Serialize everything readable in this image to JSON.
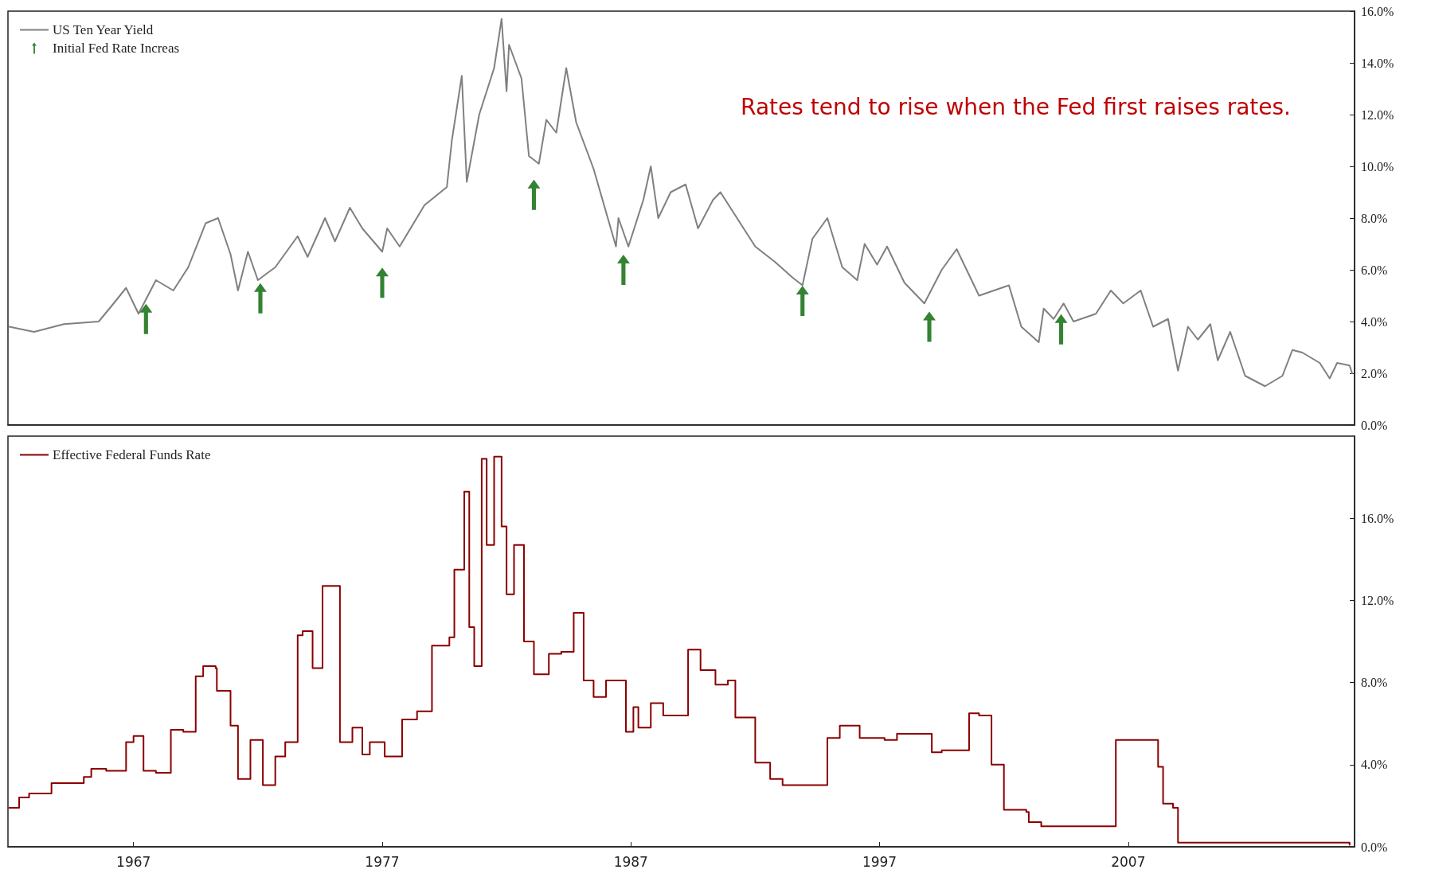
{
  "chart_data": [
    {
      "type": "line",
      "annotations": [
        "Rates tend to rise when the Fed first raises rates."
      ],
      "xlim": [
        1961.95,
        2016.1
      ],
      "ylim": [
        0,
        16
      ],
      "yticks": [
        {
          "value": 0,
          "label": "0.0%"
        },
        {
          "value": 2,
          "label": "2.0%"
        },
        {
          "value": 4,
          "label": "4.0%"
        },
        {
          "value": 6,
          "label": "6.0%"
        },
        {
          "value": 8,
          "label": "8.0%"
        },
        {
          "value": 10,
          "label": "10.0%"
        },
        {
          "value": 12,
          "label": "12.0%"
        },
        {
          "value": 14,
          "label": "14.0%"
        },
        {
          "value": 16,
          "label": "16.0%"
        }
      ],
      "tick_labels": "y",
      "grid": false,
      "legend": "top left",
      "marker": "none",
      "series": [
        {
          "name": "US Ten Year Yield",
          "color": "#808080",
          "x": [
            1962.0,
            1963.0,
            1964.2,
            1965.6,
            1966.2,
            1966.7,
            1967.2,
            1967.9,
            1968.6,
            1969.2,
            1969.9,
            1970.4,
            1970.9,
            1971.2,
            1971.6,
            1972.0,
            1972.7,
            1973.6,
            1974.0,
            1974.7,
            1975.1,
            1975.7,
            1976.2,
            1977.0,
            1977.2,
            1977.7,
            1978.7,
            1979.6,
            1979.8,
            1980.2,
            1980.4,
            1980.9,
            1981.5,
            1981.8,
            1982.0,
            1982.1,
            1982.6,
            1982.9,
            1983.3,
            1983.6,
            1984.0,
            1984.4,
            1984.8,
            1985.5,
            1986.4,
            1986.5,
            1986.9,
            1987.5,
            1987.8,
            1988.1,
            1988.6,
            1989.2,
            1989.7,
            1990.3,
            1990.6,
            1992.0,
            1992.8,
            1993.5,
            1993.9,
            1994.3,
            1994.9,
            1995.5,
            1996.1,
            1996.4,
            1996.9,
            1997.3,
            1998.0,
            1998.8,
            1999.5,
            2000.1,
            2001.0,
            2002.2,
            2002.7,
            2003.4,
            2003.6,
            2004.0,
            2004.4,
            2004.8,
            2005.7,
            2006.3,
            2006.8,
            2007.5,
            2008.0,
            2008.6,
            2009.0,
            2009.4,
            2009.8,
            2010.3,
            2010.6,
            2011.1,
            2011.7,
            2012.5,
            2013.2,
            2013.6,
            2014.0,
            2014.7,
            2015.1,
            2015.4,
            2015.9,
            2016.0
          ],
          "values": [
            3.8,
            3.6,
            3.9,
            4.0,
            4.7,
            5.3,
            4.3,
            5.6,
            5.2,
            6.1,
            7.8,
            8.0,
            6.6,
            5.2,
            6.7,
            5.6,
            6.1,
            7.3,
            6.5,
            8.0,
            7.1,
            8.4,
            7.6,
            6.7,
            7.6,
            6.9,
            8.5,
            9.2,
            11.0,
            13.5,
            9.4,
            12.0,
            13.8,
            15.7,
            12.9,
            14.7,
            13.4,
            10.4,
            10.1,
            11.8,
            11.3,
            13.8,
            11.7,
            9.9,
            6.9,
            8.0,
            6.9,
            8.7,
            10.0,
            8.0,
            9.0,
            9.3,
            7.6,
            8.7,
            9.0,
            6.9,
            6.3,
            5.7,
            5.4,
            7.2,
            8.0,
            6.1,
            5.6,
            7.0,
            6.2,
            6.9,
            5.5,
            4.7,
            6.0,
            6.8,
            5.0,
            5.4,
            3.8,
            3.2,
            4.5,
            4.1,
            4.7,
            4.0,
            4.3,
            5.2,
            4.7,
            5.2,
            3.8,
            4.1,
            2.1,
            3.8,
            3.3,
            3.9,
            2.5,
            3.6,
            1.9,
            1.5,
            1.9,
            2.9,
            2.8,
            2.4,
            1.8,
            2.4,
            2.3,
            2.0
          ]
        },
        {
          "name": "Initial Fed Rate Increas",
          "type": "scatter",
          "color": "#006400",
          "x": [
            1967.5,
            1972.1,
            1977.0,
            1983.1,
            1986.7,
            1993.9,
            1999.0,
            2004.3
          ],
          "values": [
            4.1,
            4.9,
            5.5,
            8.9,
            6.0,
            4.8,
            3.8,
            3.7
          ]
        }
      ]
    },
    {
      "type": "step",
      "xlim": [
        1961.95,
        2016.1
      ],
      "xticks": [
        1967,
        1977,
        1987,
        1997,
        2007
      ],
      "ylim": [
        0,
        20
      ],
      "yticks": [
        {
          "value": 0,
          "label": "0.0%"
        },
        {
          "value": 4,
          "label": "4.0%"
        },
        {
          "value": 8,
          "label": "8.0%"
        },
        {
          "value": 12,
          "label": "12.0%"
        },
        {
          "value": 16,
          "label": "16.0%"
        }
      ],
      "grid": false,
      "legend": "top left",
      "marker": "none",
      "series": [
        {
          "name": "Effective Federal Funds Rate",
          "color": "#8b0000",
          "x": [
            1962.0,
            1962.4,
            1962.8,
            1963.7,
            1965.0,
            1965.3,
            1965.9,
            1966.7,
            1967.0,
            1967.4,
            1967.9,
            1968.5,
            1969.0,
            1969.5,
            1969.8,
            1970.3,
            1970.35,
            1970.9,
            1971.2,
            1971.7,
            1972.2,
            1972.7,
            1973.1,
            1973.6,
            1973.8,
            1974.2,
            1974.6,
            1975.3,
            1975.8,
            1976.2,
            1976.5,
            1977.1,
            1977.8,
            1978.4,
            1979.0,
            1979.7,
            1979.9,
            1980.3,
            1980.5,
            1980.7,
            1981.0,
            1981.2,
            1981.5,
            1981.8,
            1982.0,
            1982.3,
            1982.7,
            1983.1,
            1983.7,
            1984.2,
            1984.7,
            1985.1,
            1985.5,
            1986.0,
            1986.8,
            1987.1,
            1987.3,
            1987.8,
            1988.3,
            1989.3,
            1989.8,
            1990.4,
            1990.9,
            1991.2,
            1992.0,
            1992.6,
            1993.1,
            1994.0,
            1994.9,
            1995.4,
            1996.2,
            1997.2,
            1997.7,
            1998.8,
            1999.1,
            1999.5,
            2000.6,
            2001.0,
            2001.5,
            2002.0,
            2002.9,
            2003.0,
            2003.5,
            2004.6,
            2006.5,
            2007.6,
            2008.2,
            2008.4,
            2008.8,
            2009.0,
            2015.9
          ],
          "values": [
            1.9,
            2.4,
            2.6,
            3.1,
            3.4,
            3.8,
            3.7,
            5.1,
            5.4,
            3.7,
            3.6,
            5.7,
            5.6,
            8.3,
            8.8,
            8.7,
            7.6,
            5.9,
            3.3,
            5.2,
            3.0,
            4.4,
            5.1,
            10.3,
            10.5,
            8.7,
            12.7,
            5.1,
            5.8,
            4.5,
            5.1,
            4.4,
            6.2,
            6.6,
            9.8,
            10.2,
            13.5,
            17.3,
            10.7,
            8.8,
            18.9,
            14.7,
            19.0,
            15.6,
            12.3,
            14.7,
            10.0,
            8.4,
            9.4,
            9.5,
            11.4,
            8.1,
            7.3,
            8.1,
            5.6,
            6.8,
            5.8,
            7.0,
            6.4,
            9.6,
            8.6,
            7.9,
            8.1,
            6.3,
            4.1,
            3.3,
            3.0,
            3.0,
            5.3,
            5.9,
            5.3,
            5.2,
            5.5,
            5.5,
            4.6,
            4.7,
            6.5,
            6.4,
            4.0,
            1.8,
            1.7,
            1.2,
            1.0,
            1.0,
            5.2,
            5.2,
            3.9,
            2.1,
            1.9,
            0.2,
            0.1
          ]
        }
      ]
    }
  ]
}
